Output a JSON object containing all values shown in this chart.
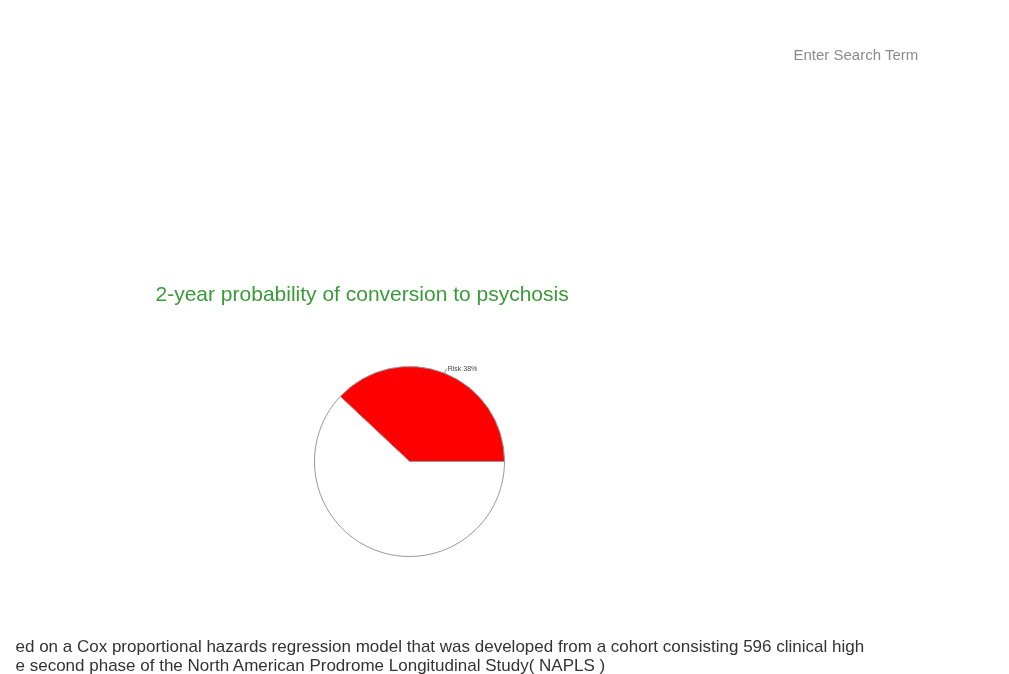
{
  "chart_data": {
    "type": "pie",
    "title": "2-year probability of conversion to psychosis",
    "categories": [
      "Risk",
      null
    ],
    "values": [
      38,
      62
    ],
    "colors": [
      "#ff0000",
      "#ffffff"
    ],
    "value_labels": [
      "38%",
      null
    ],
    "annotations": [
      "Enter Search Term",
      "ed on a Cox proportional hazards regression model that was developed from a cohort consisting 596 clinical high",
      "e second phase of the North American Prodrome Longitudinal Study( NAPLS )"
    ]
  }
}
